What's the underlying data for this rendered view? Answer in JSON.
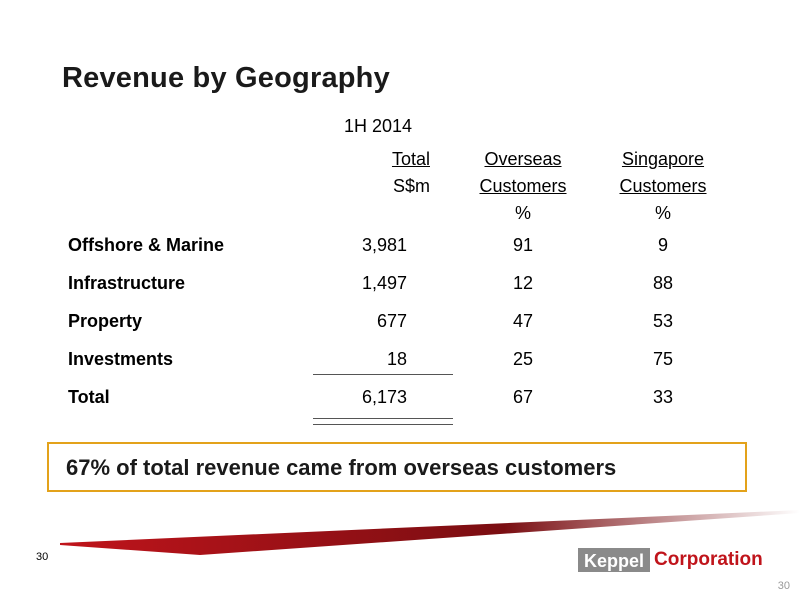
{
  "title": "Revenue by Geography",
  "period": "1H 2014",
  "columns": [
    {
      "line1": "Total",
      "line2": "S$m",
      "line3": ""
    },
    {
      "line1": "Overseas",
      "line2": "Customers",
      "line3": "%"
    },
    {
      "line1": "Singapore",
      "line2": "Customers",
      "line3": "%"
    }
  ],
  "rows": [
    {
      "label": "Offshore & Marine",
      "total": "3,981",
      "overseas": "91",
      "singapore": "9"
    },
    {
      "label": "Infrastructure",
      "total": "1,497",
      "overseas": "12",
      "singapore": "88"
    },
    {
      "label": "Property",
      "total": "677",
      "overseas": "47",
      "singapore": "53"
    },
    {
      "label": "Investments",
      "total": "18",
      "overseas": "25",
      "singapore": "75"
    },
    {
      "label": "Total",
      "total": "6,173",
      "overseas": "67",
      "singapore": "33"
    }
  ],
  "callout": "67% of total revenue came from overseas customers",
  "page_number": "30",
  "logo": {
    "brand": "Keppel",
    "suffix": "Corporation"
  },
  "colors": {
    "accent_border": "#e3a21a",
    "brand_red": "#c0141b",
    "logo_gray": "#8a8a8a"
  }
}
